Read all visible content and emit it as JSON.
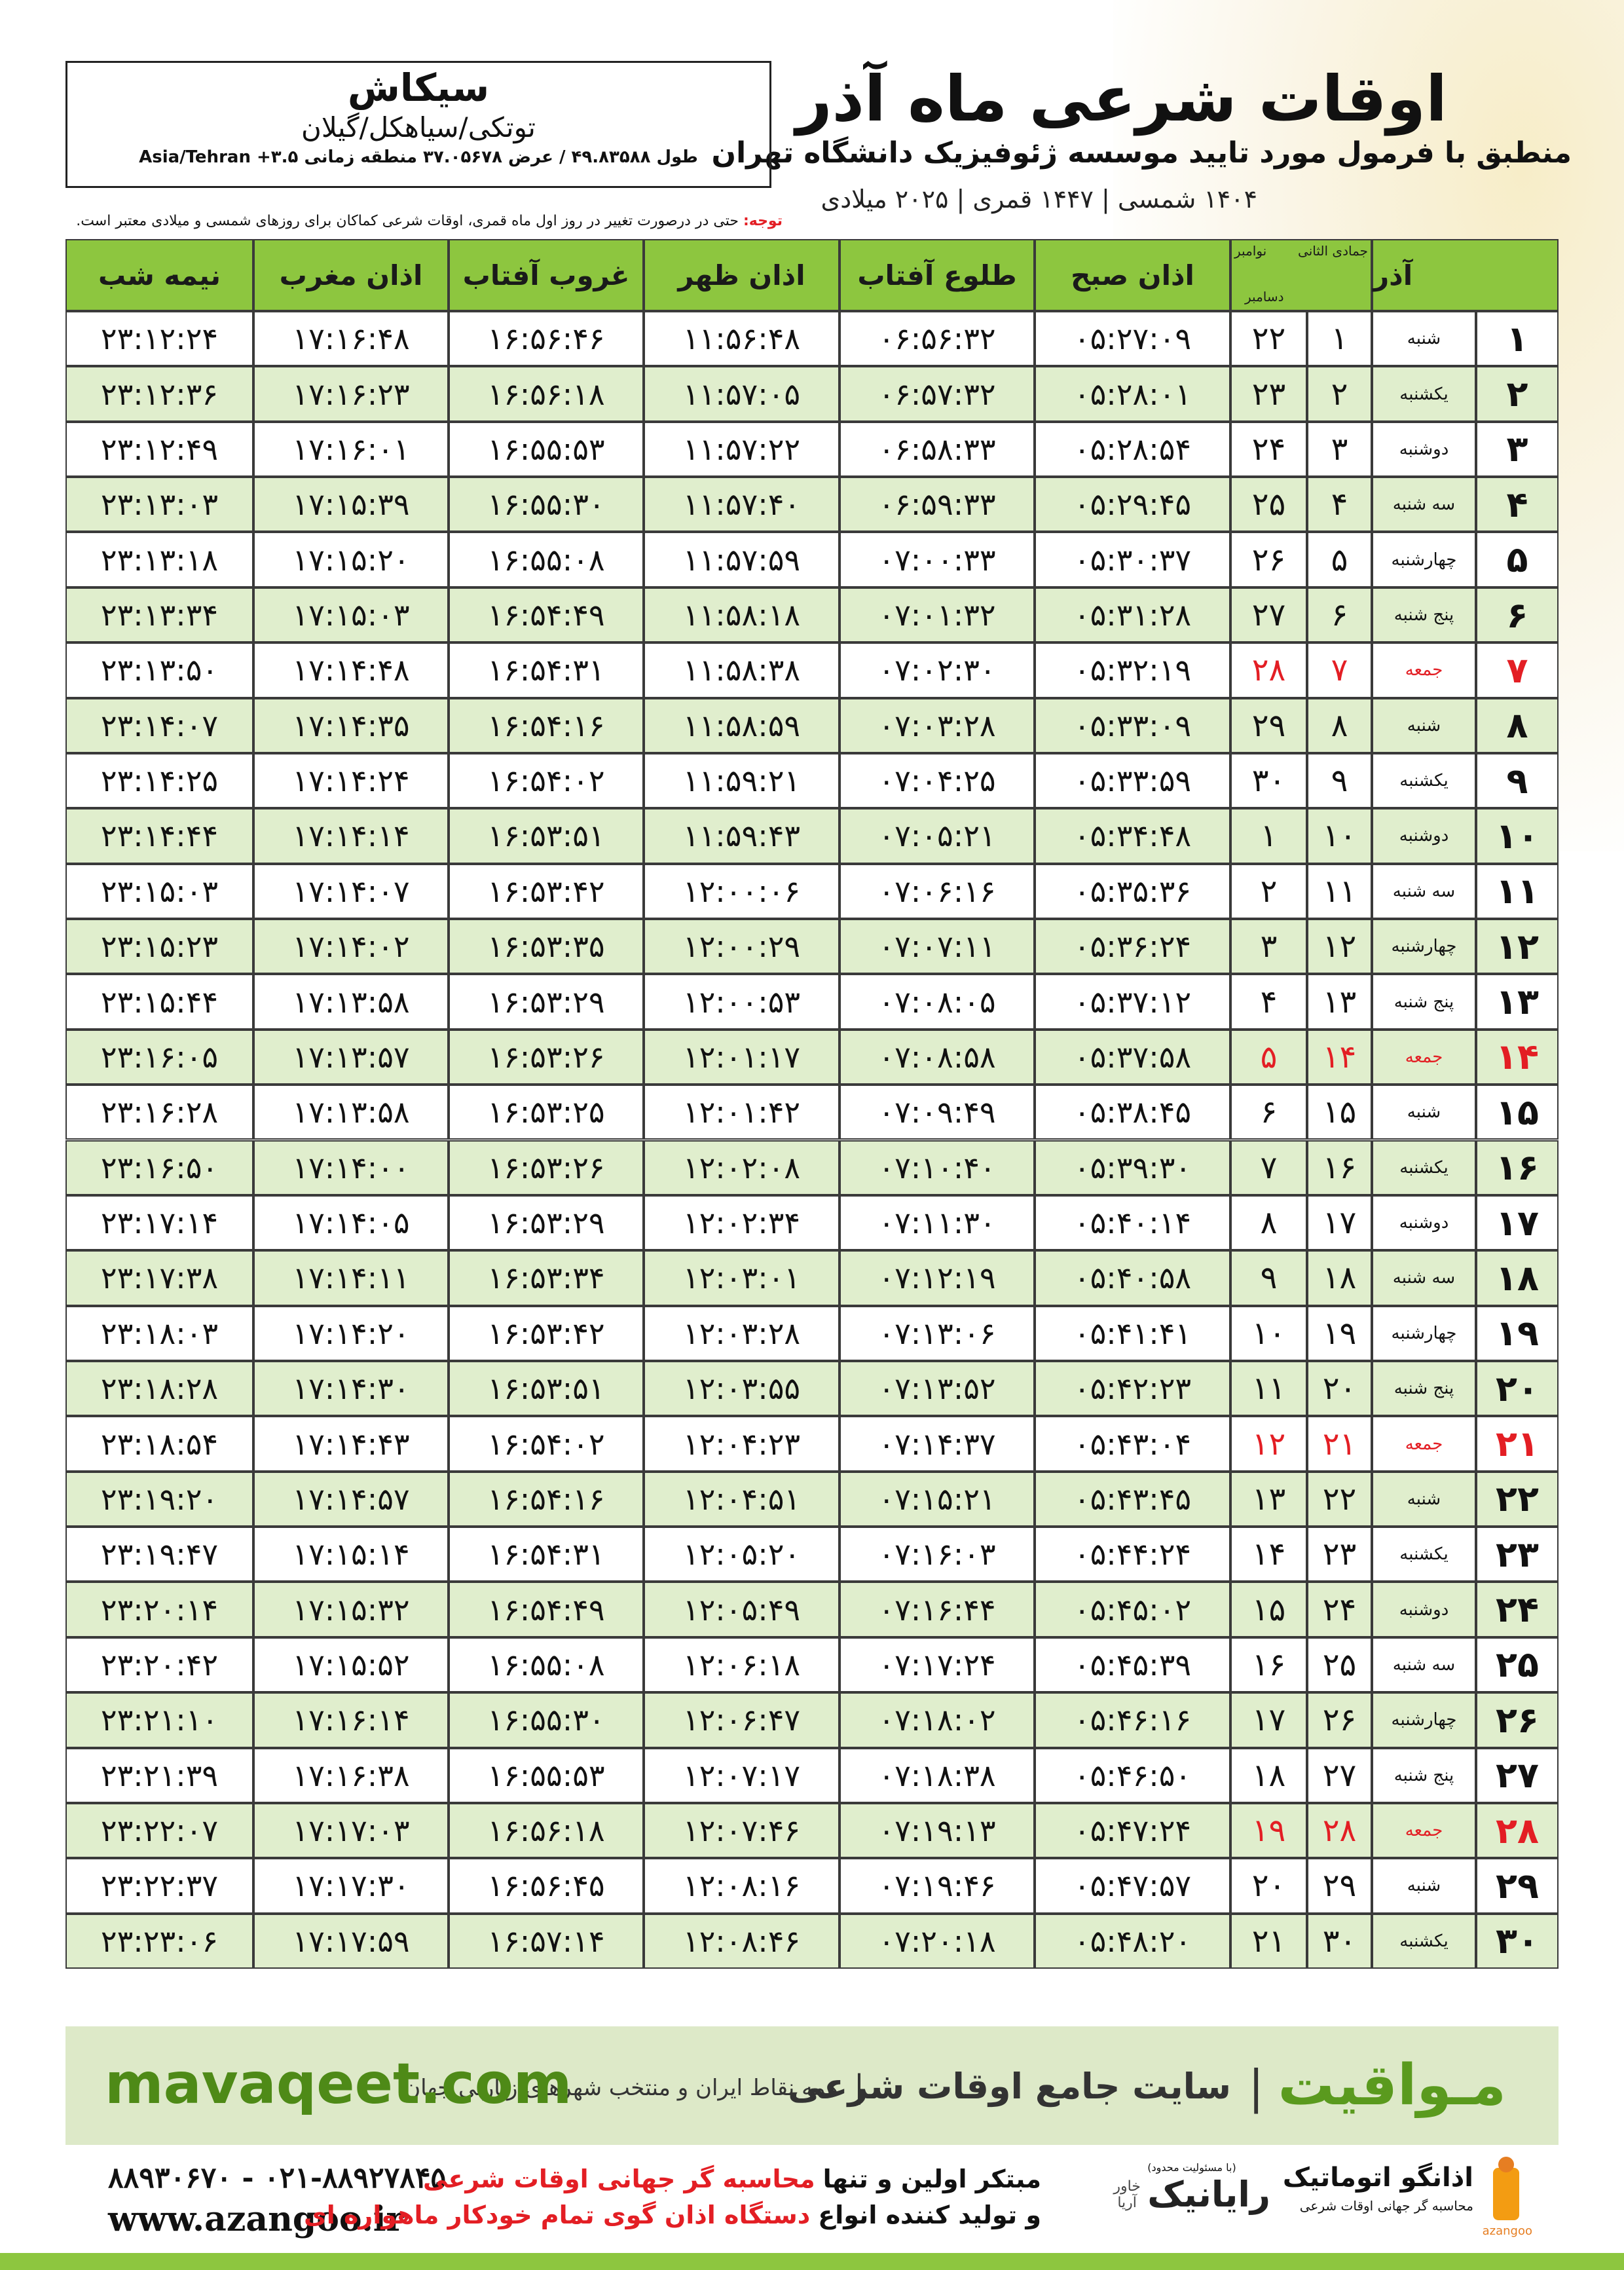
{
  "header": {
    "title": "اوقات شرعی ماه آذر",
    "subtitle": "منطبق با فرمول مورد تایید موسسه ژئوفیزیک دانشگاه تهران",
    "dates": "۱۴۰۴ شمسی | ۱۴۴۷ قمری | ۲۰۲۵ میلادی"
  },
  "location": {
    "city": "سیکاش",
    "region": "توتکی/سیاهکل/گیلان",
    "coords": "طول ۴۹.۸۳۵۸۸ / عرض ۳۷.۰۵۶۷۸ منطقه زمانی ۳.۵+ Asia/Tehran"
  },
  "note": {
    "label": "توجه:",
    "text": "حتی در درصورت تغییر در روز اول ماه قمری، اوقات شرعی کماکان برای روزهای شمسی و میلادی معتبر است."
  },
  "table": {
    "header": {
      "month": "آذر",
      "hijri_month": "جمادی الثانی",
      "greg_month_1": "نوامبر",
      "greg_month_2": "دسامبر",
      "times": [
        "اذان صبح",
        "طلوع آفتاب",
        "اذان ظهر",
        "غروب آفتاب",
        "اذان مغرب",
        "نیمه شب"
      ]
    },
    "holiday_color": "#e31e24",
    "rows": [
      {
        "cells": [
          "۱",
          "شنبه",
          "۱",
          "۲۲",
          "۰۵:۲۷:۰۹",
          "۰۶:۵۶:۳۲",
          "۱۱:۵۶:۴۸",
          "۱۶:۵۶:۴۶",
          "۱۷:۱۶:۴۸",
          "۲۳:۱۲:۲۴"
        ]
      },
      {
        "cells": [
          "۲",
          "یکشنبه",
          "۲",
          "۲۳",
          "۰۵:۲۸:۰۱",
          "۰۶:۵۷:۳۲",
          "۱۱:۵۷:۰۵",
          "۱۶:۵۶:۱۸",
          "۱۷:۱۶:۲۳",
          "۲۳:۱۲:۳۶"
        ]
      },
      {
        "cells": [
          "۳",
          "دوشنبه",
          "۳",
          "۲۴",
          "۰۵:۲۸:۵۴",
          "۰۶:۵۸:۳۳",
          "۱۱:۵۷:۲۲",
          "۱۶:۵۵:۵۳",
          "۱۷:۱۶:۰۱",
          "۲۳:۱۲:۴۹"
        ]
      },
      {
        "cells": [
          "۴",
          "سه شنبه",
          "۴",
          "۲۵",
          "۰۵:۲۹:۴۵",
          "۰۶:۵۹:۳۳",
          "۱۱:۵۷:۴۰",
          "۱۶:۵۵:۳۰",
          "۱۷:۱۵:۳۹",
          "۲۳:۱۳:۰۳"
        ]
      },
      {
        "cells": [
          "۵",
          "چهارشنبه",
          "۵",
          "۲۶",
          "۰۵:۳۰:۳۷",
          "۰۷:۰۰:۳۳",
          "۱۱:۵۷:۵۹",
          "۱۶:۵۵:۰۸",
          "۱۷:۱۵:۲۰",
          "۲۳:۱۳:۱۸"
        ]
      },
      {
        "cells": [
          "۶",
          "پنج شنبه",
          "۶",
          "۲۷",
          "۰۵:۳۱:۲۸",
          "۰۷:۰۱:۳۲",
          "۱۱:۵۸:۱۸",
          "۱۶:۵۴:۴۹",
          "۱۷:۱۵:۰۳",
          "۲۳:۱۳:۳۴"
        ]
      },
      {
        "cells": [
          "۷",
          "جمعه",
          "۷",
          "۲۸",
          "۰۵:۳۲:۱۹",
          "۰۷:۰۲:۳۰",
          "۱۱:۵۸:۳۸",
          "۱۶:۵۴:۳۱",
          "۱۷:۱۴:۴۸",
          "۲۳:۱۳:۵۰"
        ],
        "holiday": true
      },
      {
        "cells": [
          "۸",
          "شنبه",
          "۸",
          "۲۹",
          "۰۵:۳۳:۰۹",
          "۰۷:۰۳:۲۸",
          "۱۱:۵۸:۵۹",
          "۱۶:۵۴:۱۶",
          "۱۷:۱۴:۳۵",
          "۲۳:۱۴:۰۷"
        ]
      },
      {
        "cells": [
          "۹",
          "یکشنبه",
          "۹",
          "۳۰",
          "۰۵:۳۳:۵۹",
          "۰۷:۰۴:۲۵",
          "۱۱:۵۹:۲۱",
          "۱۶:۵۴:۰۲",
          "۱۷:۱۴:۲۴",
          "۲۳:۱۴:۲۵"
        ]
      },
      {
        "cells": [
          "۱۰",
          "دوشنبه",
          "۱۰",
          "۱",
          "۰۵:۳۴:۴۸",
          "۰۷:۰۵:۲۱",
          "۱۱:۵۹:۴۳",
          "۱۶:۵۳:۵۱",
          "۱۷:۱۴:۱۴",
          "۲۳:۱۴:۴۴"
        ]
      },
      {
        "cells": [
          "۱۱",
          "سه شنبه",
          "۱۱",
          "۲",
          "۰۵:۳۵:۳۶",
          "۰۷:۰۶:۱۶",
          "۱۲:۰۰:۰۶",
          "۱۶:۵۳:۴۲",
          "۱۷:۱۴:۰۷",
          "۲۳:۱۵:۰۳"
        ]
      },
      {
        "cells": [
          "۱۲",
          "چهارشنبه",
          "۱۲",
          "۳",
          "۰۵:۳۶:۲۴",
          "۰۷:۰۷:۱۱",
          "۱۲:۰۰:۲۹",
          "۱۶:۵۳:۳۵",
          "۱۷:۱۴:۰۲",
          "۲۳:۱۵:۲۳"
        ]
      },
      {
        "cells": [
          "۱۳",
          "پنج شنبه",
          "۱۳",
          "۴",
          "۰۵:۳۷:۱۲",
          "۰۷:۰۸:۰۵",
          "۱۲:۰۰:۵۳",
          "۱۶:۵۳:۲۹",
          "۱۷:۱۳:۵۸",
          "۲۳:۱۵:۴۴"
        ]
      },
      {
        "cells": [
          "۱۴",
          "جمعه",
          "۱۴",
          "۵",
          "۰۵:۳۷:۵۸",
          "۰۷:۰۸:۵۸",
          "۱۲:۰۱:۱۷",
          "۱۶:۵۳:۲۶",
          "۱۷:۱۳:۵۷",
          "۲۳:۱۶:۰۵"
        ],
        "holiday": true
      },
      {
        "cells": [
          "۱۵",
          "شنبه",
          "۱۵",
          "۶",
          "۰۵:۳۸:۴۵",
          "۰۷:۰۹:۴۹",
          "۱۲:۰۱:۴۲",
          "۱۶:۵۳:۲۵",
          "۱۷:۱۳:۵۸",
          "۲۳:۱۶:۲۸"
        ]
      },
      {
        "cells": [
          "۱۶",
          "یکشنبه",
          "۱۶",
          "۷",
          "۰۵:۳۹:۳۰",
          "۰۷:۱۰:۴۰",
          "۱۲:۰۲:۰۸",
          "۱۶:۵۳:۲۶",
          "۱۷:۱۴:۰۰",
          "۲۳:۱۶:۵۰"
        ]
      },
      {
        "cells": [
          "۱۷",
          "دوشنبه",
          "۱۷",
          "۸",
          "۰۵:۴۰:۱۴",
          "۰۷:۱۱:۳۰",
          "۱۲:۰۲:۳۴",
          "۱۶:۵۳:۲۹",
          "۱۷:۱۴:۰۵",
          "۲۳:۱۷:۱۴"
        ]
      },
      {
        "cells": [
          "۱۸",
          "سه شنبه",
          "۱۸",
          "۹",
          "۰۵:۴۰:۵۸",
          "۰۷:۱۲:۱۹",
          "۱۲:۰۳:۰۱",
          "۱۶:۵۳:۳۴",
          "۱۷:۱۴:۱۱",
          "۲۳:۱۷:۳۸"
        ]
      },
      {
        "cells": [
          "۱۹",
          "چهارشنبه",
          "۱۹",
          "۱۰",
          "۰۵:۴۱:۴۱",
          "۰۷:۱۳:۰۶",
          "۱۲:۰۳:۲۸",
          "۱۶:۵۳:۴۲",
          "۱۷:۱۴:۲۰",
          "۲۳:۱۸:۰۳"
        ]
      },
      {
        "cells": [
          "۲۰",
          "پنج شنبه",
          "۲۰",
          "۱۱",
          "۰۵:۴۲:۲۳",
          "۰۷:۱۳:۵۲",
          "۱۲:۰۳:۵۵",
          "۱۶:۵۳:۵۱",
          "۱۷:۱۴:۳۰",
          "۲۳:۱۸:۲۸"
        ]
      },
      {
        "cells": [
          "۲۱",
          "جمعه",
          "۲۱",
          "۱۲",
          "۰۵:۴۳:۰۴",
          "۰۷:۱۴:۳۷",
          "۱۲:۰۴:۲۳",
          "۱۶:۵۴:۰۲",
          "۱۷:۱۴:۴۳",
          "۲۳:۱۸:۵۴"
        ],
        "holiday": true
      },
      {
        "cells": [
          "۲۲",
          "شنبه",
          "۲۲",
          "۱۳",
          "۰۵:۴۳:۴۵",
          "۰۷:۱۵:۲۱",
          "۱۲:۰۴:۵۱",
          "۱۶:۵۴:۱۶",
          "۱۷:۱۴:۵۷",
          "۲۳:۱۹:۲۰"
        ]
      },
      {
        "cells": [
          "۲۳",
          "یکشنبه",
          "۲۳",
          "۱۴",
          "۰۵:۴۴:۲۴",
          "۰۷:۱۶:۰۳",
          "۱۲:۰۵:۲۰",
          "۱۶:۵۴:۳۱",
          "۱۷:۱۵:۱۴",
          "۲۳:۱۹:۴۷"
        ]
      },
      {
        "cells": [
          "۲۴",
          "دوشنبه",
          "۲۴",
          "۱۵",
          "۰۵:۴۵:۰۲",
          "۰۷:۱۶:۴۴",
          "۱۲:۰۵:۴۹",
          "۱۶:۵۴:۴۹",
          "۱۷:۱۵:۳۲",
          "۲۳:۲۰:۱۴"
        ]
      },
      {
        "cells": [
          "۲۵",
          "سه شنبه",
          "۲۵",
          "۱۶",
          "۰۵:۴۵:۳۹",
          "۰۷:۱۷:۲۴",
          "۱۲:۰۶:۱۸",
          "۱۶:۵۵:۰۸",
          "۱۷:۱۵:۵۲",
          "۲۳:۲۰:۴۲"
        ]
      },
      {
        "cells": [
          "۲۶",
          "چهارشنبه",
          "۲۶",
          "۱۷",
          "۰۵:۴۶:۱۶",
          "۰۷:۱۸:۰۲",
          "۱۲:۰۶:۴۷",
          "۱۶:۵۵:۳۰",
          "۱۷:۱۶:۱۴",
          "۲۳:۲۱:۱۰"
        ]
      },
      {
        "cells": [
          "۲۷",
          "پنج شنبه",
          "۲۷",
          "۱۸",
          "۰۵:۴۶:۵۰",
          "۰۷:۱۸:۳۸",
          "۱۲:۰۷:۱۷",
          "۱۶:۵۵:۵۳",
          "۱۷:۱۶:۳۸",
          "۲۳:۲۱:۳۹"
        ]
      },
      {
        "cells": [
          "۲۸",
          "جمعه",
          "۲۸",
          "۱۹",
          "۰۵:۴۷:۲۴",
          "۰۷:۱۹:۱۳",
          "۱۲:۰۷:۴۶",
          "۱۶:۵۶:۱۸",
          "۱۷:۱۷:۰۳",
          "۲۳:۲۲:۰۷"
        ],
        "holiday": true
      },
      {
        "cells": [
          "۲۹",
          "شنبه",
          "۲۹",
          "۲۰",
          "۰۵:۴۷:۵۷",
          "۰۷:۱۹:۴۶",
          "۱۲:۰۸:۱۶",
          "۱۶:۵۶:۴۵",
          "۱۷:۱۷:۳۰",
          "۲۳:۲۲:۳۷"
        ]
      },
      {
        "cells": [
          "۳۰",
          "یکشنبه",
          "۳۰",
          "۲۱",
          "۰۵:۴۸:۲۰",
          "۰۷:۲۰:۱۸",
          "۱۲:۰۸:۴۶",
          "۱۶:۵۷:۱۴",
          "۱۷:۱۷:۵۹",
          "۲۳:۲۳:۰۶"
        ]
      }
    ]
  },
  "banner": {
    "brand": "مـواقیت",
    "tagline": "سایت جامع اوقات شرعی",
    "coverage": "همه نقاط ایران و منتخب شهرهای زیارتی جهان",
    "url": "mavaqeet.com"
  },
  "footer": {
    "phones": "۰۲۱-۸۸۹۲۷۸۴۵ - ۸۸۹۳۰۶۷۰",
    "website": "www.azangoo.ir",
    "line1": [
      "مبتکر اولین و تنها",
      "محاسبه گر جهانی اوقات شرعی"
    ],
    "line2": [
      "و تولید کننده انواع",
      "دستگاه اذان گوی تمام خودکار ماهواره ای"
    ],
    "logo1_note": "(با مسئولیت محدود)",
    "logo1_name": "رایانیک",
    "logo1_sub": "خاور آریا",
    "logo2_name": "اذانگو اتوماتیک",
    "logo2_sub": "محاسبه گر جهانی اوقات شرعی",
    "logo2_latin": "azangoo"
  }
}
